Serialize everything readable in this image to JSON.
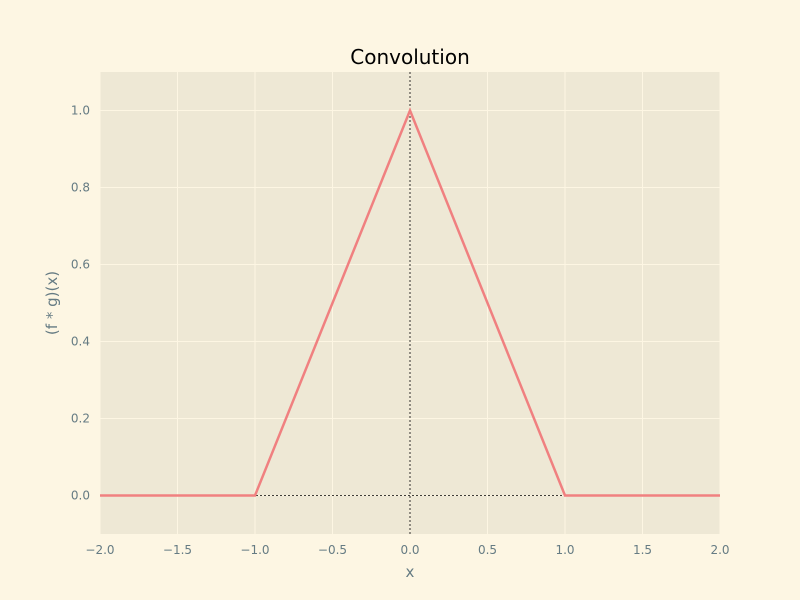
{
  "chart_data": {
    "type": "line",
    "title": "Convolution",
    "xlabel": "x",
    "ylabel": "(f * g)(x)",
    "xlim": [
      -2.0,
      2.0
    ],
    "ylim": [
      -0.1,
      1.1
    ],
    "xticks": [
      -2.0,
      -1.5,
      -1.0,
      -0.5,
      0.0,
      0.5,
      1.0,
      1.5,
      2.0
    ],
    "xtick_labels": [
      "−2.0",
      "−1.5",
      "−1.0",
      "−0.5",
      "0.0",
      "0.5",
      "1.0",
      "1.5",
      "2.0"
    ],
    "yticks": [
      0.0,
      0.2,
      0.4,
      0.6,
      0.8,
      1.0
    ],
    "ytick_labels": [
      "0.0",
      "0.2",
      "0.4",
      "0.6",
      "0.8",
      "1.0"
    ],
    "grid": true,
    "reference_lines": {
      "x": 0,
      "y": 0
    },
    "series": [
      {
        "x": [
          -2.0,
          -1.0,
          0.0,
          1.0,
          2.0
        ],
        "y": [
          0.0,
          0.0,
          1.0,
          0.0,
          0.0
        ],
        "color": "#f08080"
      }
    ]
  },
  "colors": {
    "page_background": "#fdf6e3",
    "plot_background": "#eee8d5",
    "grid": "#fdf6e3",
    "text": "#657b83",
    "title": "#000000",
    "reference_line": "#000000"
  }
}
